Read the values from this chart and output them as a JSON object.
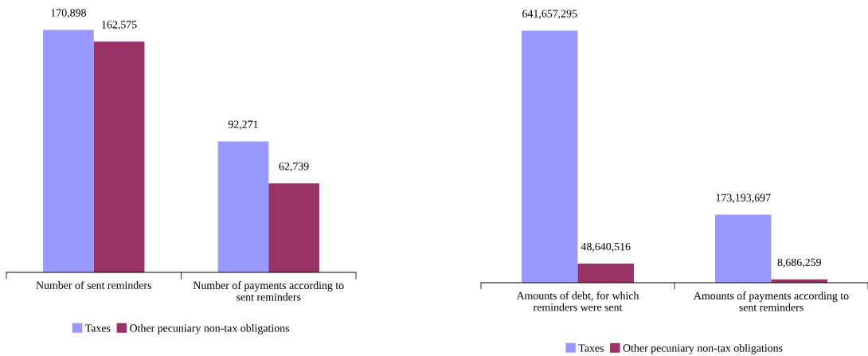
{
  "chart_data": [
    {
      "type": "bar",
      "categories": [
        "Number of sent reminders",
        "Number of payments according to\nsent reminders"
      ],
      "series": [
        {
          "name": "Taxes",
          "color": "#9999ff",
          "values": [
            170898,
            92271
          ],
          "value_labels": [
            "170,898",
            "92,271"
          ]
        },
        {
          "name": "Other pecuniary non-tax obligations",
          "color": "#993366",
          "values": [
            162575,
            62739
          ],
          "value_labels": [
            "162,575",
            "62,739"
          ]
        }
      ],
      "legend": "bottom",
      "grid": false
    },
    {
      "type": "bar",
      "categories": [
        "Amounts of debt, for which\nreminders were sent",
        "Amounts of payments according to\nsent reminders"
      ],
      "series": [
        {
          "name": "Taxes",
          "color": "#9999ff",
          "values": [
            641657295,
            173193697
          ],
          "value_labels": [
            "641,657,295",
            "173,193,697"
          ]
        },
        {
          "name": "Other pecuniary non-tax obligations",
          "color": "#993366",
          "values": [
            48640516,
            8686259
          ],
          "value_labels": [
            "48,640,516",
            "8,686,259"
          ]
        }
      ],
      "legend": "bottom",
      "grid": false
    }
  ]
}
